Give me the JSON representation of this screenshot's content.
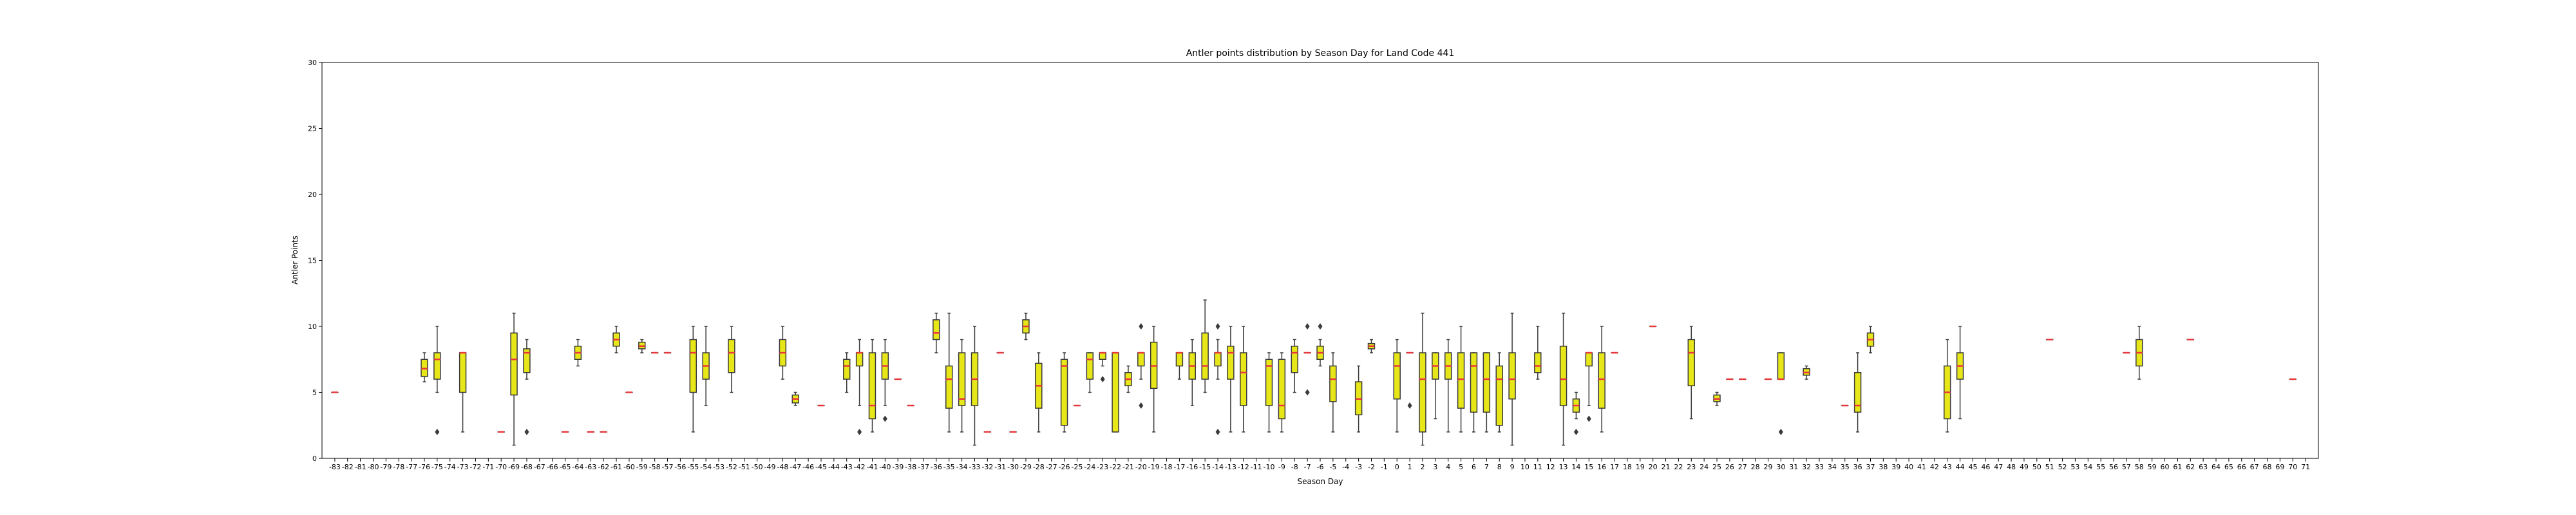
{
  "chart_data": {
    "type": "box",
    "title": "Antler points distribution by Season Day for Land Code 441",
    "xlabel": "Season Day",
    "ylabel": "Antler Points",
    "ylim": [
      0,
      30
    ],
    "yticks": [
      0,
      5,
      10,
      15,
      20,
      25,
      30
    ],
    "grid": false,
    "colors": {
      "box_fill": "#e6e619",
      "median": "#e8383d",
      "whisker": "#3a3a3a",
      "outlier": "#3a3a3a"
    },
    "categories": [
      "-83",
      "-82",
      "-81",
      "-80",
      "-79",
      "-78",
      "-77",
      "-76",
      "-75",
      "-74",
      "-73",
      "-72",
      "-71",
      "-70",
      "-69",
      "-68",
      "-67",
      "-66",
      "-65",
      "-64",
      "-63",
      "-62",
      "-61",
      "-60",
      "-59",
      "-58",
      "-57",
      "-56",
      "-55",
      "-54",
      "-53",
      "-52",
      "-51",
      "-50",
      "-49",
      "-48",
      "-47",
      "-46",
      "-45",
      "-44",
      "-43",
      "-42",
      "-41",
      "-40",
      "-39",
      "-38",
      "-37",
      "-36",
      "-35",
      "-34",
      "-33",
      "-32",
      "-31",
      "-30",
      "-29",
      "-28",
      "-27",
      "-26",
      "-25",
      "-24",
      "-23",
      "-22",
      "-21",
      "-20",
      "-19",
      "-18",
      "-17",
      "-16",
      "-15",
      "-14",
      "-13",
      "-12",
      "-11",
      "-10",
      "-9",
      "-8",
      "-7",
      "-6",
      "-5",
      "-4",
      "-3",
      "-2",
      "-1",
      "0",
      "1",
      "2",
      "3",
      "4",
      "5",
      "6",
      "7",
      "8",
      "9",
      "10",
      "11",
      "12",
      "13",
      "14",
      "15",
      "16",
      "17",
      "18",
      "19",
      "20",
      "21",
      "22",
      "23",
      "24",
      "25",
      "26",
      "27",
      "28",
      "29",
      "30",
      "31",
      "32",
      "33",
      "34",
      "35",
      "36",
      "37",
      "38",
      "39",
      "40",
      "41",
      "42",
      "43",
      "44",
      "45",
      "46",
      "47",
      "48",
      "49",
      "50",
      "51",
      "52",
      "53",
      "54",
      "55",
      "56",
      "57",
      "58",
      "59",
      "60",
      "61",
      "62",
      "63",
      "64",
      "65",
      "66",
      "67",
      "68",
      "69",
      "70",
      "71"
    ],
    "boxes": [
      {
        "x": "-83",
        "q1": 5,
        "median": 5,
        "q3": 5,
        "whislo": 5,
        "whishi": 5,
        "fliers": []
      },
      {
        "x": "-76",
        "q1": 6.2,
        "median": 6.8,
        "q3": 7.5,
        "whislo": 5.8,
        "whishi": 8,
        "fliers": []
      },
      {
        "x": "-75",
        "q1": 6,
        "median": 7.5,
        "q3": 8,
        "whislo": 5,
        "whishi": 10,
        "fliers": [
          2
        ]
      },
      {
        "x": "-73",
        "q1": 5,
        "median": 8,
        "q3": 8,
        "whislo": 2,
        "whishi": 8,
        "fliers": []
      },
      {
        "x": "-70",
        "q1": 2,
        "median": 2,
        "q3": 2,
        "whislo": 2,
        "whishi": 2,
        "fliers": []
      },
      {
        "x": "-69",
        "q1": 4.8,
        "median": 7.5,
        "q3": 9.5,
        "whislo": 1,
        "whishi": 11,
        "fliers": []
      },
      {
        "x": "-68",
        "q1": 6.5,
        "median": 8,
        "q3": 8.3,
        "whislo": 6,
        "whishi": 9,
        "fliers": [
          2
        ]
      },
      {
        "x": "-65",
        "q1": 2,
        "median": 2,
        "q3": 2,
        "whislo": 2,
        "whishi": 2,
        "fliers": []
      },
      {
        "x": "-64",
        "q1": 7.5,
        "median": 8,
        "q3": 8.5,
        "whislo": 7,
        "whishi": 9,
        "fliers": []
      },
      {
        "x": "-63",
        "q1": 2,
        "median": 2,
        "q3": 2,
        "whislo": 2,
        "whishi": 2,
        "fliers": []
      },
      {
        "x": "-62",
        "q1": 2,
        "median": 2,
        "q3": 2,
        "whislo": 2,
        "whishi": 2,
        "fliers": []
      },
      {
        "x": "-61",
        "q1": 8.5,
        "median": 9,
        "q3": 9.5,
        "whislo": 8,
        "whishi": 10,
        "fliers": []
      },
      {
        "x": "-60",
        "q1": 5,
        "median": 5,
        "q3": 5,
        "whislo": 5,
        "whishi": 5,
        "fliers": []
      },
      {
        "x": "-59",
        "q1": 8.3,
        "median": 8.5,
        "q3": 8.8,
        "whislo": 8,
        "whishi": 9,
        "fliers": []
      },
      {
        "x": "-58",
        "q1": 8,
        "median": 8,
        "q3": 8,
        "whislo": 8,
        "whishi": 8,
        "fliers": []
      },
      {
        "x": "-57",
        "q1": 8,
        "median": 8,
        "q3": 8,
        "whislo": 8,
        "whishi": 8,
        "fliers": []
      },
      {
        "x": "-55",
        "q1": 5,
        "median": 8,
        "q3": 9,
        "whislo": 2,
        "whishi": 10,
        "fliers": []
      },
      {
        "x": "-54",
        "q1": 6,
        "median": 7,
        "q3": 8,
        "whislo": 4,
        "whishi": 10,
        "fliers": []
      },
      {
        "x": "-52",
        "q1": 6.5,
        "median": 8,
        "q3": 9,
        "whislo": 5,
        "whishi": 10,
        "fliers": []
      },
      {
        "x": "-48",
        "q1": 7,
        "median": 8,
        "q3": 9,
        "whislo": 6,
        "whishi": 10,
        "fliers": []
      },
      {
        "x": "-47",
        "q1": 4.2,
        "median": 4.5,
        "q3": 4.8,
        "whislo": 4,
        "whishi": 5,
        "fliers": []
      },
      {
        "x": "-45",
        "q1": 4,
        "median": 4,
        "q3": 4,
        "whislo": 4,
        "whishi": 4,
        "fliers": []
      },
      {
        "x": "-43",
        "q1": 6,
        "median": 7,
        "q3": 7.5,
        "whislo": 5,
        "whishi": 8,
        "fliers": []
      },
      {
        "x": "-42",
        "q1": 7,
        "median": 8,
        "q3": 8,
        "whislo": 4,
        "whishi": 9,
        "fliers": [
          2
        ]
      },
      {
        "x": "-41",
        "q1": 3,
        "median": 4,
        "q3": 8,
        "whislo": 2,
        "whishi": 9,
        "fliers": []
      },
      {
        "x": "-40",
        "q1": 6,
        "median": 7,
        "q3": 8,
        "whislo": 4,
        "whishi": 9,
        "fliers": [
          3
        ]
      },
      {
        "x": "-39",
        "q1": 6,
        "median": 6,
        "q3": 6,
        "whislo": 6,
        "whishi": 6,
        "fliers": []
      },
      {
        "x": "-38",
        "q1": 4,
        "median": 4,
        "q3": 4,
        "whislo": 4,
        "whishi": 4,
        "fliers": []
      },
      {
        "x": "-36",
        "q1": 9,
        "median": 9.5,
        "q3": 10.5,
        "whislo": 8,
        "whishi": 11,
        "fliers": []
      },
      {
        "x": "-35",
        "q1": 3.8,
        "median": 6,
        "q3": 7,
        "whislo": 2,
        "whishi": 11,
        "fliers": []
      },
      {
        "x": "-34",
        "q1": 4,
        "median": 4.5,
        "q3": 8,
        "whislo": 2,
        "whishi": 9,
        "fliers": []
      },
      {
        "x": "-33",
        "q1": 4,
        "median": 6,
        "q3": 8,
        "whislo": 1,
        "whishi": 10,
        "fliers": []
      },
      {
        "x": "-32",
        "q1": 2,
        "median": 2,
        "q3": 2,
        "whislo": 2,
        "whishi": 2,
        "fliers": []
      },
      {
        "x": "-31",
        "q1": 8,
        "median": 8,
        "q3": 8,
        "whislo": 8,
        "whishi": 8,
        "fliers": []
      },
      {
        "x": "-30",
        "q1": 2,
        "median": 2,
        "q3": 2,
        "whislo": 2,
        "whishi": 2,
        "fliers": []
      },
      {
        "x": "-29",
        "q1": 9.5,
        "median": 10,
        "q3": 10.5,
        "whislo": 9,
        "whishi": 11,
        "fliers": []
      },
      {
        "x": "-28",
        "q1": 3.8,
        "median": 5.5,
        "q3": 7.2,
        "whislo": 2,
        "whishi": 8,
        "fliers": []
      },
      {
        "x": "-26",
        "q1": 2.5,
        "median": 7,
        "q3": 7.5,
        "whislo": 2,
        "whishi": 8,
        "fliers": []
      },
      {
        "x": "-25",
        "q1": 4,
        "median": 4,
        "q3": 4,
        "whislo": 4,
        "whishi": 4,
        "fliers": []
      },
      {
        "x": "-24",
        "q1": 6,
        "median": 7.5,
        "q3": 8,
        "whislo": 5,
        "whishi": 8,
        "fliers": []
      },
      {
        "x": "-23",
        "q1": 7.5,
        "median": 8,
        "q3": 8,
        "whislo": 7,
        "whishi": 8,
        "fliers": [
          6
        ]
      },
      {
        "x": "-22",
        "q1": 2,
        "median": 8,
        "q3": 8,
        "whislo": 2,
        "whishi": 8,
        "fliers": []
      },
      {
        "x": "-21",
        "q1": 5.5,
        "median": 6,
        "q3": 6.5,
        "whislo": 5,
        "whishi": 7,
        "fliers": []
      },
      {
        "x": "-20",
        "q1": 7,
        "median": 8,
        "q3": 8,
        "whislo": 6,
        "whishi": 8,
        "fliers": [
          4,
          10
        ]
      },
      {
        "x": "-19",
        "q1": 5.3,
        "median": 7,
        "q3": 8.8,
        "whislo": 2,
        "whishi": 10,
        "fliers": []
      },
      {
        "x": "-17",
        "q1": 7,
        "median": 8,
        "q3": 8,
        "whislo": 6,
        "whishi": 8,
        "fliers": []
      },
      {
        "x": "-16",
        "q1": 6,
        "median": 7,
        "q3": 8,
        "whislo": 4,
        "whishi": 9,
        "fliers": []
      },
      {
        "x": "-15",
        "q1": 6,
        "median": 7,
        "q3": 9.5,
        "whislo": 5,
        "whishi": 12,
        "fliers": []
      },
      {
        "x": "-14",
        "q1": 7,
        "median": 8,
        "q3": 8,
        "whislo": 6,
        "whishi": 9,
        "fliers": [
          2,
          10
        ]
      },
      {
        "x": "-13",
        "q1": 6,
        "median": 8,
        "q3": 8.5,
        "whislo": 2,
        "whishi": 10,
        "fliers": []
      },
      {
        "x": "-12",
        "q1": 4,
        "median": 6.5,
        "q3": 8,
        "whislo": 2,
        "whishi": 10,
        "fliers": []
      },
      {
        "x": "-10",
        "q1": 4,
        "median": 7,
        "q3": 7.5,
        "whislo": 2,
        "whishi": 8,
        "fliers": []
      },
      {
        "x": "-9",
        "q1": 3,
        "median": 4,
        "q3": 7.5,
        "whislo": 2,
        "whishi": 8,
        "fliers": []
      },
      {
        "x": "-8",
        "q1": 6.5,
        "median": 8,
        "q3": 8.5,
        "whislo": 5,
        "whishi": 9,
        "fliers": []
      },
      {
        "x": "-7",
        "q1": 8,
        "median": 8,
        "q3": 8,
        "whislo": 8,
        "whishi": 8,
        "fliers": [
          5,
          10
        ]
      },
      {
        "x": "-6",
        "q1": 7.5,
        "median": 8,
        "q3": 8.5,
        "whislo": 7,
        "whishi": 9,
        "fliers": [
          10
        ]
      },
      {
        "x": "-5",
        "q1": 4.3,
        "median": 6,
        "q3": 7,
        "whislo": 2,
        "whishi": 8,
        "fliers": []
      },
      {
        "x": "-3",
        "q1": 3.3,
        "median": 4.5,
        "q3": 5.8,
        "whislo": 2,
        "whishi": 7,
        "fliers": []
      },
      {
        "x": "-2",
        "q1": 8.3,
        "median": 8.5,
        "q3": 8.7,
        "whislo": 8,
        "whishi": 9,
        "fliers": []
      },
      {
        "x": "0",
        "q1": 4.5,
        "median": 7,
        "q3": 8,
        "whislo": 2,
        "whishi": 9,
        "fliers": []
      },
      {
        "x": "1",
        "q1": 8,
        "median": 8,
        "q3": 8,
        "whislo": 8,
        "whishi": 8,
        "fliers": [
          4
        ]
      },
      {
        "x": "2",
        "q1": 2,
        "median": 6,
        "q3": 8,
        "whislo": 1,
        "whishi": 11,
        "fliers": []
      },
      {
        "x": "3",
        "q1": 6,
        "median": 7,
        "q3": 8,
        "whislo": 3,
        "whishi": 8,
        "fliers": []
      },
      {
        "x": "4",
        "q1": 6,
        "median": 7,
        "q3": 8,
        "whislo": 2,
        "whishi": 9,
        "fliers": []
      },
      {
        "x": "5",
        "q1": 3.8,
        "median": 6,
        "q3": 8,
        "whislo": 2,
        "whishi": 10,
        "fliers": []
      },
      {
        "x": "6",
        "q1": 3.5,
        "median": 7,
        "q3": 8,
        "whislo": 2,
        "whishi": 8,
        "fliers": []
      },
      {
        "x": "7",
        "q1": 3.5,
        "median": 6,
        "q3": 8,
        "whislo": 2,
        "whishi": 8,
        "fliers": []
      },
      {
        "x": "8",
        "q1": 2.5,
        "median": 6,
        "q3": 7,
        "whislo": 2,
        "whishi": 8,
        "fliers": []
      },
      {
        "x": "9",
        "q1": 4.5,
        "median": 6,
        "q3": 8,
        "whislo": 1,
        "whishi": 11,
        "fliers": []
      },
      {
        "x": "11",
        "q1": 6.5,
        "median": 7,
        "q3": 8,
        "whislo": 6,
        "whishi": 10,
        "fliers": []
      },
      {
        "x": "13",
        "q1": 4,
        "median": 6,
        "q3": 8.5,
        "whislo": 1,
        "whishi": 11,
        "fliers": []
      },
      {
        "x": "14",
        "q1": 3.5,
        "median": 4,
        "q3": 4.5,
        "whislo": 3,
        "whishi": 5,
        "fliers": [
          2
        ]
      },
      {
        "x": "15",
        "q1": 7,
        "median": 8,
        "q3": 8,
        "whislo": 4,
        "whishi": 8,
        "fliers": [
          3
        ]
      },
      {
        "x": "16",
        "q1": 3.8,
        "median": 6,
        "q3": 8,
        "whislo": 2,
        "whishi": 10,
        "fliers": []
      },
      {
        "x": "17",
        "q1": 8,
        "median": 8,
        "q3": 8,
        "whislo": 8,
        "whishi": 8,
        "fliers": []
      },
      {
        "x": "20",
        "q1": 10,
        "median": 10,
        "q3": 10,
        "whislo": 10,
        "whishi": 10,
        "fliers": []
      },
      {
        "x": "23",
        "q1": 5.5,
        "median": 8,
        "q3": 9,
        "whislo": 3,
        "whishi": 10,
        "fliers": []
      },
      {
        "x": "25",
        "q1": 4.3,
        "median": 4.5,
        "q3": 4.8,
        "whislo": 4,
        "whishi": 5,
        "fliers": []
      },
      {
        "x": "26",
        "q1": 6,
        "median": 6,
        "q3": 6,
        "whislo": 6,
        "whishi": 6,
        "fliers": []
      },
      {
        "x": "27",
        "q1": 6,
        "median": 6,
        "q3": 6,
        "whislo": 6,
        "whishi": 6,
        "fliers": []
      },
      {
        "x": "29",
        "q1": 6,
        "median": 6,
        "q3": 6,
        "whislo": 6,
        "whishi": 6,
        "fliers": []
      },
      {
        "x": "30",
        "q1": 6,
        "median": 6,
        "q3": 8,
        "whislo": 6,
        "whishi": 8,
        "fliers": [
          2
        ]
      },
      {
        "x": "32",
        "q1": 6.3,
        "median": 6.5,
        "q3": 6.8,
        "whislo": 6,
        "whishi": 7,
        "fliers": []
      },
      {
        "x": "35",
        "q1": 4,
        "median": 4,
        "q3": 4,
        "whislo": 4,
        "whishi": 4,
        "fliers": []
      },
      {
        "x": "36",
        "q1": 3.5,
        "median": 4,
        "q3": 6.5,
        "whislo": 2,
        "whishi": 8,
        "fliers": []
      },
      {
        "x": "37",
        "q1": 8.5,
        "median": 9,
        "q3": 9.5,
        "whislo": 8,
        "whishi": 10,
        "fliers": []
      },
      {
        "x": "43",
        "q1": 3,
        "median": 5,
        "q3": 7,
        "whislo": 2,
        "whishi": 9,
        "fliers": []
      },
      {
        "x": "44",
        "q1": 6,
        "median": 7,
        "q3": 8,
        "whislo": 3,
        "whishi": 10,
        "fliers": []
      },
      {
        "x": "51",
        "q1": 9,
        "median": 9,
        "q3": 9,
        "whislo": 9,
        "whishi": 9,
        "fliers": []
      },
      {
        "x": "57",
        "q1": 8,
        "median": 8,
        "q3": 8,
        "whislo": 8,
        "whishi": 8,
        "fliers": []
      },
      {
        "x": "58",
        "q1": 7,
        "median": 8,
        "q3": 9,
        "whislo": 6,
        "whishi": 10,
        "fliers": []
      },
      {
        "x": "62",
        "q1": 9,
        "median": 9,
        "q3": 9,
        "whislo": 9,
        "whishi": 9,
        "fliers": []
      },
      {
        "x": "70",
        "q1": 6,
        "median": 6,
        "q3": 6,
        "whislo": 6,
        "whishi": 6,
        "fliers": []
      }
    ]
  }
}
